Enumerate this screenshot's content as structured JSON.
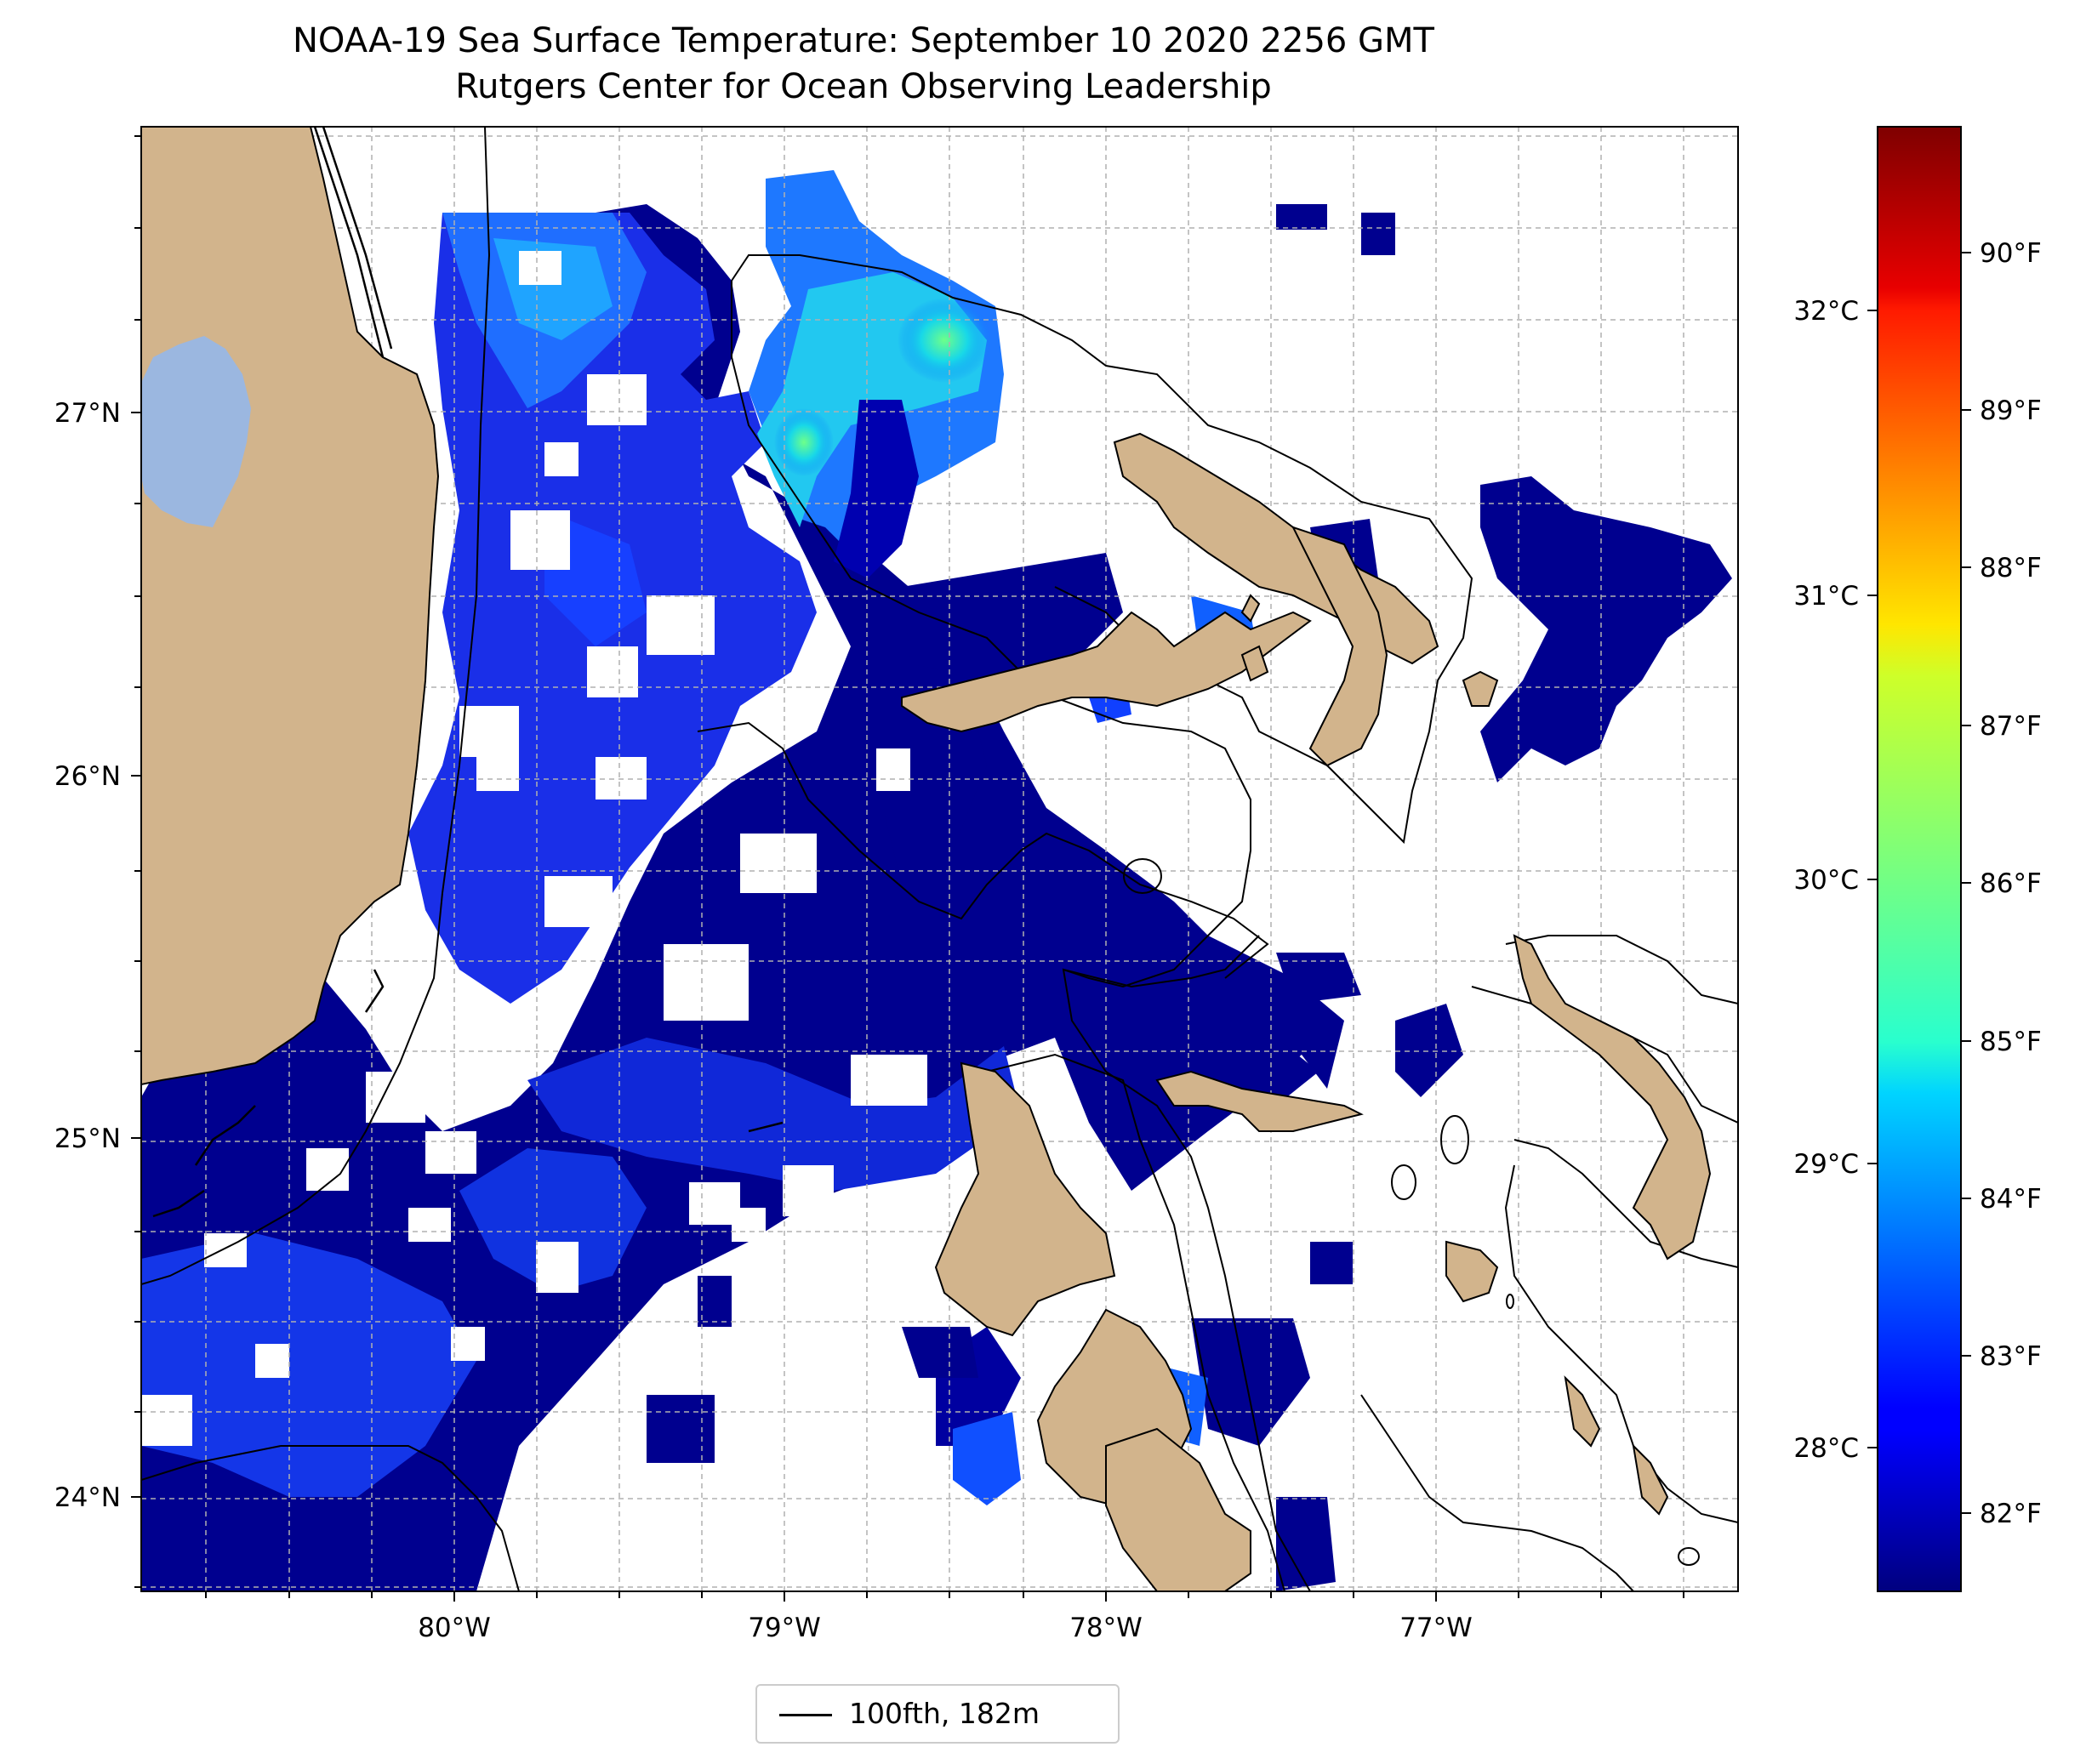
{
  "title": {
    "line1": "NOAA-19 Sea Surface Temperature: September 10 2020 2256 GMT",
    "line2": "Rutgers Center for Ocean Observing Leadership"
  },
  "map": {
    "lon_range": [
      -80.95,
      -76.1
    ],
    "lat_range": [
      23.75,
      27.8
    ],
    "lat_ticks": [
      {
        "value": 24,
        "label": "24°N"
      },
      {
        "value": 25,
        "label": "25°N"
      },
      {
        "value": 26,
        "label": "26°N"
      },
      {
        "value": 27,
        "label": "27°N"
      }
    ],
    "lon_ticks": [
      {
        "value": -80,
        "label": "80°W"
      },
      {
        "value": -79,
        "label": "79°W"
      },
      {
        "value": -78,
        "label": "78°W"
      },
      {
        "value": -77,
        "label": "77°W"
      }
    ],
    "gridlines": "dashed",
    "colors": {
      "land": "#d2b48c",
      "lake": "#9bb7e0",
      "sst_low": "#00007f"
    }
  },
  "colorbar": {
    "colormap": "jet",
    "range_celsius": [
      27.5,
      32.7
    ],
    "celsius_ticks": [
      {
        "value": 28,
        "label": "28°C"
      },
      {
        "value": 29,
        "label": "29°C"
      },
      {
        "value": 30,
        "label": "30°C"
      },
      {
        "value": 31,
        "label": "31°C"
      },
      {
        "value": 32,
        "label": "32°C"
      }
    ],
    "fahrenheit_ticks": [
      {
        "value": 82,
        "label": "82°F"
      },
      {
        "value": 83,
        "label": "83°F"
      },
      {
        "value": 84,
        "label": "84°F"
      },
      {
        "value": 85,
        "label": "85°F"
      },
      {
        "value": 86,
        "label": "86°F"
      },
      {
        "value": 87,
        "label": "87°F"
      },
      {
        "value": 88,
        "label": "88°F"
      },
      {
        "value": 89,
        "label": "89°F"
      },
      {
        "value": 90,
        "label": "90°F"
      }
    ]
  },
  "legend": {
    "label": "100fth, 182m",
    "position": "bottom-center"
  }
}
